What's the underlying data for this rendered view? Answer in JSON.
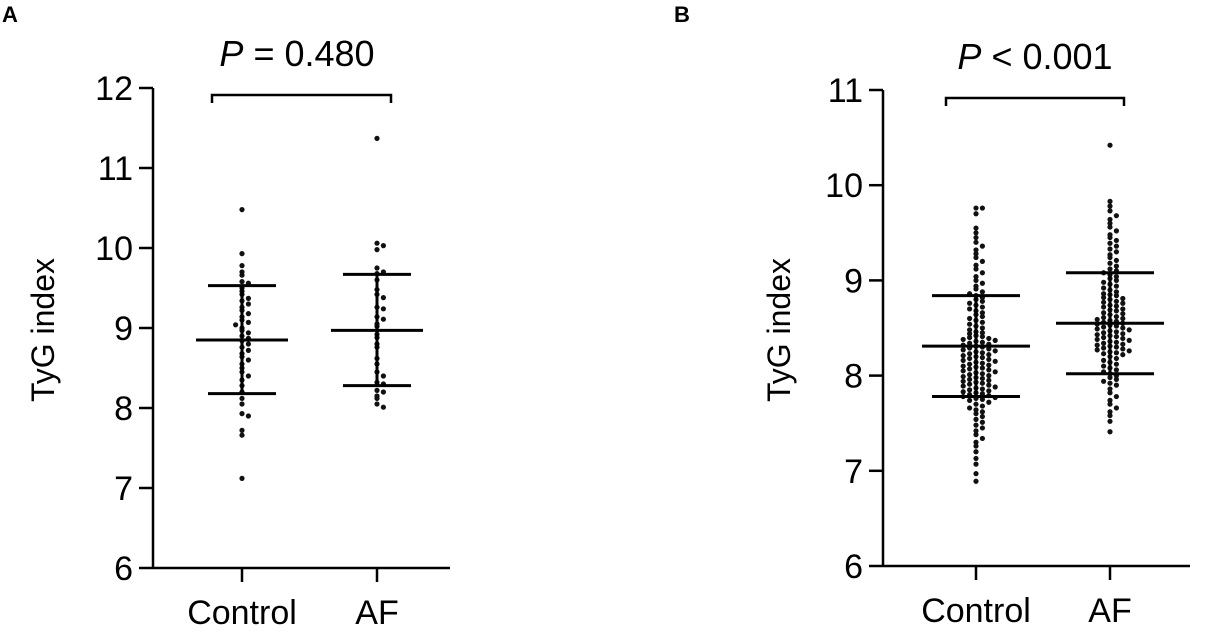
{
  "chart_data": [
    {
      "panel": "A",
      "type": "scatter",
      "ylabel": "TyG index",
      "xlabel": "",
      "ylim": [
        6,
        12
      ],
      "yticks": [
        "6",
        "7",
        "8",
        "9",
        "10",
        "11",
        "12"
      ],
      "categories": [
        "Control",
        "AF"
      ],
      "annotation": {
        "p_symbol": "P",
        "p_text": " = 0.480"
      },
      "groups": [
        {
          "category": "Control",
          "mean": 8.85,
          "sd_low": 8.18,
          "sd_high": 9.53,
          "points": [
            10.48,
            9.93,
            9.78,
            9.7,
            9.66,
            9.58,
            9.56,
            9.5,
            9.46,
            9.42,
            9.37,
            9.34,
            9.3,
            9.26,
            9.22,
            9.18,
            9.14,
            9.1,
            9.07,
            9.04,
            9.0,
            8.97,
            8.94,
            8.9,
            8.87,
            8.84,
            8.8,
            8.76,
            8.72,
            8.68,
            8.64,
            8.6,
            8.55,
            8.5,
            8.45,
            8.4,
            8.35,
            8.28,
            8.2,
            8.12,
            8.05,
            7.93,
            7.9,
            7.72,
            7.66,
            7.12
          ]
        },
        {
          "category": "AF",
          "mean": 8.97,
          "sd_low": 8.28,
          "sd_high": 9.67,
          "points": [
            11.37,
            10.06,
            10.03,
            9.98,
            9.75,
            9.7,
            9.68,
            9.6,
            9.48,
            9.42,
            9.38,
            9.26,
            9.24,
            9.14,
            9.11,
            9.05,
            9.02,
            8.92,
            8.88,
            8.8,
            8.76,
            8.62,
            8.55,
            8.45,
            8.4,
            8.32,
            8.3,
            8.22,
            8.2,
            8.15,
            8.12,
            8.05,
            8.01
          ]
        }
      ]
    },
    {
      "panel": "B",
      "type": "scatter",
      "ylabel": "TyG index",
      "xlabel": "",
      "ylim": [
        6,
        11
      ],
      "yticks": [
        "6",
        "7",
        "8",
        "9",
        "10",
        "11"
      ],
      "categories": [
        "Control",
        "AF"
      ],
      "annotation": {
        "p_symbol": "P",
        "p_text": " < 0.001"
      },
      "groups": [
        {
          "category": "Control",
          "mean": 8.31,
          "sd_low": 7.78,
          "sd_high": 8.84,
          "points": [
            9.76,
            9.76,
            9.7,
            9.55,
            9.5,
            9.45,
            9.4,
            9.36,
            9.32,
            9.28,
            9.24,
            9.2,
            9.16,
            9.12,
            9.08,
            9.04,
            9.0,
            8.97,
            8.94,
            8.91,
            8.88,
            8.86,
            8.84,
            8.82,
            8.8,
            8.78,
            8.76,
            8.74,
            8.72,
            8.7,
            8.68,
            8.66,
            8.64,
            8.62,
            8.6,
            8.58,
            8.56,
            8.54,
            8.52,
            8.5,
            8.48,
            8.46,
            8.45,
            8.44,
            8.42,
            8.41,
            8.4,
            8.39,
            8.38,
            8.37,
            8.36,
            8.35,
            8.34,
            8.33,
            8.32,
            8.31,
            8.3,
            8.29,
            8.28,
            8.27,
            8.26,
            8.25,
            8.24,
            8.23,
            8.22,
            8.21,
            8.2,
            8.19,
            8.18,
            8.17,
            8.16,
            8.15,
            8.14,
            8.13,
            8.12,
            8.11,
            8.1,
            8.09,
            8.08,
            8.07,
            8.06,
            8.05,
            8.04,
            8.03,
            8.02,
            8.01,
            8.0,
            7.99,
            7.98,
            7.97,
            7.96,
            7.95,
            7.94,
            7.93,
            7.92,
            7.91,
            7.9,
            7.89,
            7.88,
            7.87,
            7.86,
            7.85,
            7.84,
            7.83,
            7.82,
            7.81,
            7.8,
            7.79,
            7.78,
            7.77,
            7.76,
            7.75,
            7.74,
            7.72,
            7.7,
            7.68,
            7.66,
            7.64,
            7.62,
            7.6,
            7.57,
            7.54,
            7.51,
            7.48,
            7.45,
            7.42,
            7.38,
            7.34,
            7.3,
            7.26,
            7.2,
            7.13,
            7.07,
            6.97,
            6.89
          ]
        },
        {
          "category": "AF",
          "mean": 8.55,
          "sd_low": 8.02,
          "sd_high": 9.08,
          "points": [
            10.42,
            9.83,
            9.78,
            9.73,
            9.68,
            9.64,
            9.6,
            9.56,
            9.52,
            9.48,
            9.45,
            9.42,
            9.39,
            9.36,
            9.33,
            9.3,
            9.27,
            9.24,
            9.21,
            9.18,
            9.15,
            9.12,
            9.1,
            9.08,
            9.06,
            9.04,
            9.02,
            9.0,
            8.98,
            8.96,
            8.94,
            8.92,
            8.9,
            8.88,
            8.86,
            8.85,
            8.84,
            8.82,
            8.81,
            8.8,
            8.78,
            8.77,
            8.76,
            8.74,
            8.73,
            8.72,
            8.7,
            8.69,
            8.68,
            8.66,
            8.65,
            8.64,
            8.62,
            8.61,
            8.6,
            8.59,
            8.58,
            8.57,
            8.56,
            8.55,
            8.54,
            8.53,
            8.52,
            8.51,
            8.5,
            8.49,
            8.48,
            8.47,
            8.46,
            8.45,
            8.44,
            8.43,
            8.42,
            8.41,
            8.4,
            8.39,
            8.38,
            8.37,
            8.36,
            8.35,
            8.34,
            8.33,
            8.32,
            8.31,
            8.3,
            8.29,
            8.28,
            8.27,
            8.26,
            8.25,
            8.24,
            8.23,
            8.22,
            8.2,
            8.18,
            8.16,
            8.14,
            8.12,
            8.1,
            8.08,
            8.06,
            8.04,
            8.02,
            8.0,
            7.98,
            7.96,
            7.94,
            7.92,
            7.9,
            7.86,
            7.82,
            7.78,
            7.74,
            7.7,
            7.66,
            7.62,
            7.58,
            7.52,
            7.41
          ]
        }
      ]
    }
  ]
}
